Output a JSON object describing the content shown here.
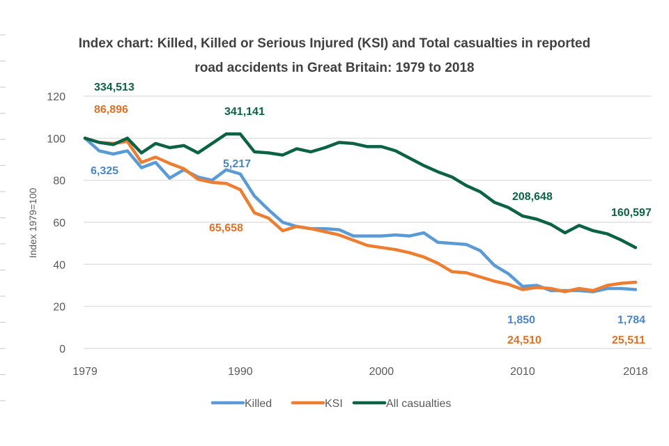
{
  "chart_data": {
    "type": "line",
    "title": [
      "Index chart: Killed, Killed or Serious Injured (KSI) and Total casualties in reported",
      "road accidents in Great Britain: 1979 to 2018"
    ],
    "xlabel": "",
    "ylabel": "Index 1979=100",
    "ylim": [
      0,
      120
    ],
    "yticks": [
      0,
      20,
      40,
      60,
      80,
      100,
      120
    ],
    "xlim": [
      1979,
      2018
    ],
    "xtick_labels": [
      "1979",
      "1990",
      "2000",
      "2010",
      "2018"
    ],
    "xtick_values": [
      1979,
      1990,
      2000,
      2010,
      2018
    ],
    "grid": true,
    "legend_position": "bottom",
    "x": [
      1979,
      1980,
      1981,
      1982,
      1983,
      1984,
      1985,
      1986,
      1987,
      1988,
      1989,
      1990,
      1991,
      1992,
      1993,
      1994,
      1995,
      1996,
      1997,
      1998,
      1999,
      2000,
      2001,
      2002,
      2003,
      2004,
      2005,
      2006,
      2007,
      2008,
      2009,
      2010,
      2011,
      2012,
      2013,
      2014,
      2015,
      2016,
      2017,
      2018
    ],
    "series": [
      {
        "name": "Killed",
        "color": "#5B9BD5",
        "values": [
          100,
          94,
          92.5,
          94,
          86,
          88.5,
          81,
          85,
          81.5,
          80,
          85,
          83,
          72.5,
          66,
          60,
          58,
          57,
          57,
          56.5,
          53.5,
          53.5,
          53.5,
          54,
          53.5,
          55,
          50.5,
          50,
          49.5,
          46.5,
          39.5,
          35.5,
          29.5,
          30,
          27.5,
          27.5,
          27.5,
          27,
          28.5,
          28.5,
          28
        ]
      },
      {
        "name": "KSI",
        "color": "#ED7D31",
        "values": [
          100,
          98,
          97.5,
          98.5,
          88.5,
          91,
          88,
          85.5,
          80.5,
          79,
          78.5,
          75.5,
          64.5,
          62,
          56,
          58,
          57,
          55.5,
          54,
          51.5,
          49,
          48,
          47,
          45.5,
          43.5,
          40.5,
          36.5,
          36,
          34,
          32,
          30.5,
          28,
          29,
          28.5,
          27,
          28.5,
          27.5,
          30,
          31,
          31.5
        ]
      },
      {
        "name": "All casualties",
        "color": "#0B6245",
        "values": [
          100,
          98,
          97,
          100,
          93,
          97.5,
          95.5,
          96.5,
          93,
          97.5,
          102,
          102,
          93.5,
          93,
          92,
          95,
          93.5,
          95.5,
          98,
          97.5,
          96,
          96,
          94,
          90.5,
          87,
          84,
          81.5,
          77.5,
          74.5,
          69.5,
          67,
          63,
          61.5,
          59,
          55,
          58.5,
          56,
          54.5,
          51.5,
          48
        ]
      }
    ],
    "annotations": [
      {
        "series": "All casualties",
        "text": "334,513",
        "year": 1979,
        "value": 100
      },
      {
        "series": "KSI",
        "text": "86,896",
        "year": 1979,
        "value": 100
      },
      {
        "series": "Killed",
        "text": "6,325",
        "year": 1979,
        "value": 100
      },
      {
        "series": "All casualties",
        "text": "341,141",
        "year": 1990,
        "value": 102
      },
      {
        "series": "Killed",
        "text": "5,217",
        "year": 1990,
        "value": 83
      },
      {
        "series": "KSI",
        "text": "65,658",
        "year": 1990,
        "value": 75.5
      },
      {
        "series": "All casualties",
        "text": "208,648",
        "year": 2010,
        "value": 63
      },
      {
        "series": "Killed",
        "text": "1,850",
        "year": 2010,
        "value": 29.5
      },
      {
        "series": "KSI",
        "text": "24,510",
        "year": 2010,
        "value": 28
      },
      {
        "series": "All casualties",
        "text": "160,597",
        "year": 2018,
        "value": 48
      },
      {
        "series": "Killed",
        "text": "1,784",
        "year": 2018,
        "value": 28
      },
      {
        "series": "KSI",
        "text": "25,511",
        "year": 2018,
        "value": 31.5
      }
    ]
  }
}
